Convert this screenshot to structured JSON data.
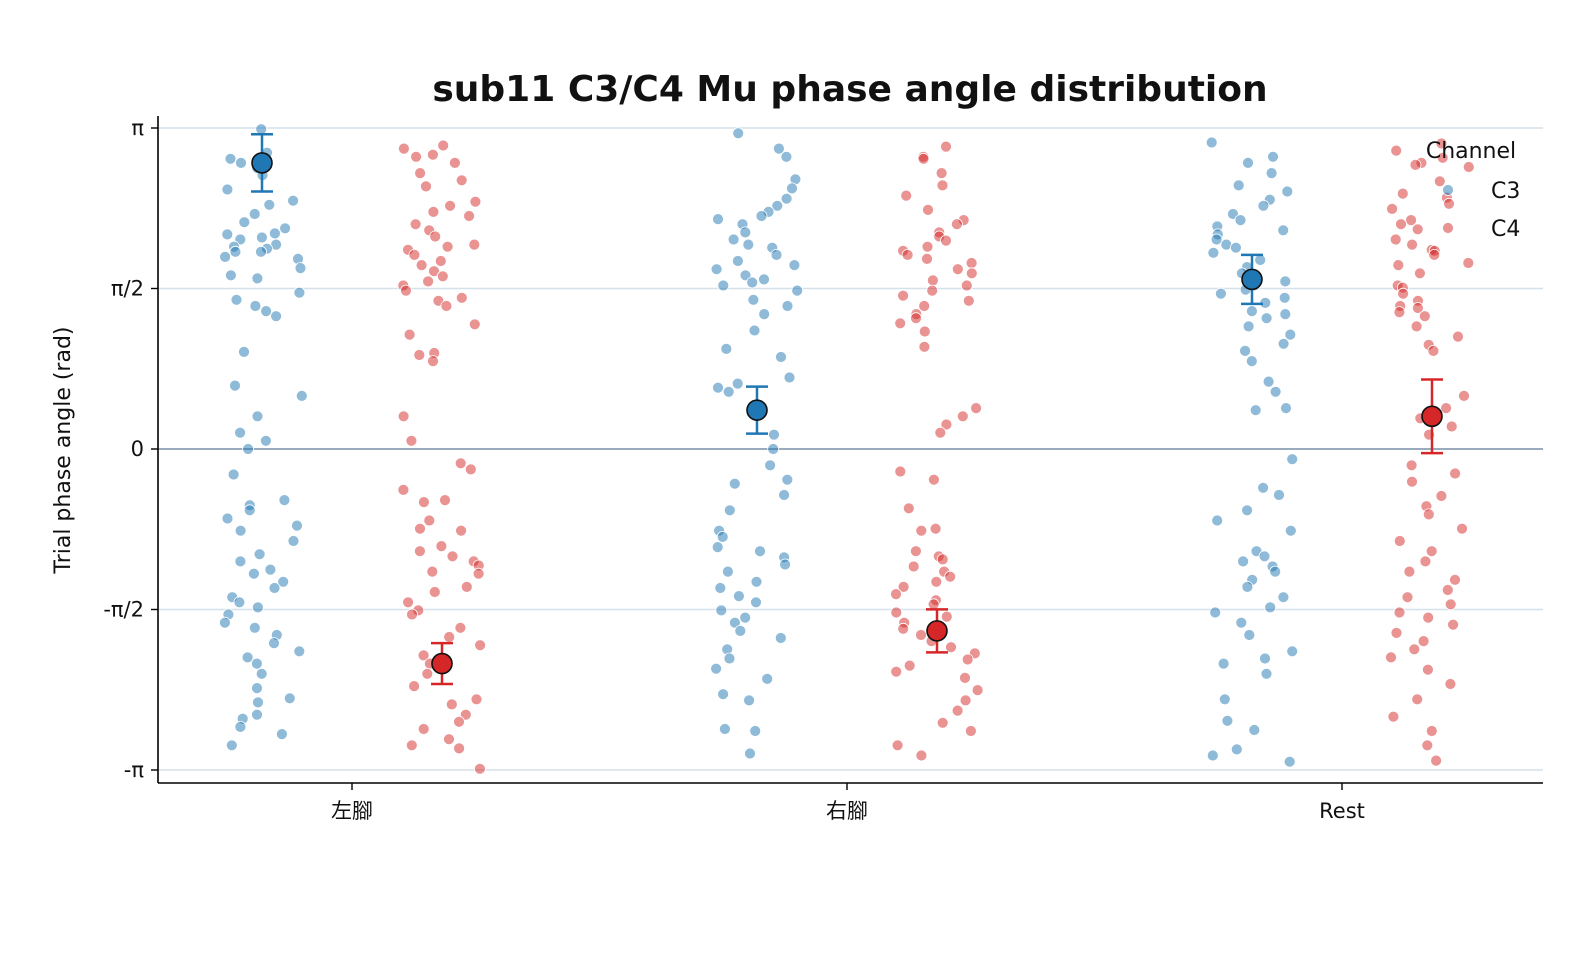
{
  "chart_data": {
    "type": "scatter",
    "title": "sub11 C3/C4 Mu phase angle distribution",
    "xlabel": "",
    "ylabel": "Trial phase angle (rad)",
    "categories": [
      "左腳",
      "右腳",
      "Rest"
    ],
    "ylim": [
      -3.3,
      3.3
    ],
    "yticks": [
      {
        "value": 3.14159,
        "label": "π"
      },
      {
        "value": 1.5708,
        "label": "π/2"
      },
      {
        "value": 0,
        "label": "0"
      },
      {
        "value": -1.5708,
        "label": "-π/2"
      },
      {
        "value": -3.14159,
        "label": "-π"
      }
    ],
    "grid": "horizontal at π/2 multiples",
    "legend": {
      "title": "Channel",
      "placement": "top-right",
      "entries": [
        "C3",
        "C4"
      ]
    },
    "colors": {
      "C3": "#1f77b4",
      "C4": "#d62728"
    },
    "series": [
      {
        "name": "C3",
        "trials": [
          [
            3.13,
            2.9,
            2.84,
            2.8,
            2.75,
            2.68,
            2.54,
            2.43,
            2.39,
            2.3,
            2.22,
            2.16,
            2.11,
            2.1,
            2.07,
            2.05,
            2.0,
            1.98,
            1.96,
            1.93,
            1.93,
            1.88,
            1.86,
            1.77,
            1.7,
            1.67,
            1.53,
            1.46,
            1.4,
            1.35,
            1.3,
            0.95,
            0.62,
            0.52,
            0.32,
            0.16,
            0.08,
            0.0,
            -0.25,
            -0.5,
            -0.55,
            -0.6,
            -0.68,
            -0.75,
            -0.8,
            -0.9,
            -1.03,
            -1.1,
            -1.18,
            -1.22,
            -1.3,
            -1.36,
            -1.45,
            -1.5,
            -1.55,
            -1.62,
            -1.7,
            -1.75,
            -1.82,
            -1.9,
            -1.98,
            -2.04,
            -2.1,
            -2.2,
            -2.34,
            -2.44,
            -2.48,
            -2.6,
            -2.64,
            -2.72,
            -2.79,
            -2.9
          ],
          [
            3.09,
            2.94,
            2.86,
            2.64,
            2.55,
            2.45,
            2.38,
            2.32,
            2.28,
            2.25,
            2.2,
            2.12,
            2.05,
            2.0,
            1.97,
            1.9,
            1.84,
            1.8,
            1.76,
            1.7,
            1.66,
            1.63,
            1.6,
            1.55,
            1.46,
            1.4,
            1.32,
            1.16,
            0.98,
            0.9,
            0.7,
            0.64,
            0.6,
            0.56,
            0.14,
            0.0,
            -0.16,
            -0.3,
            -0.34,
            -0.45,
            -0.6,
            -0.8,
            -0.86,
            -0.96,
            -1.0,
            -1.06,
            -1.13,
            -1.2,
            -1.3,
            -1.36,
            -1.44,
            -1.5,
            -1.58,
            -1.65,
            -1.7,
            -1.78,
            -1.85,
            -1.96,
            -2.05,
            -2.15,
            -2.25,
            -2.4,
            -2.46,
            -2.74,
            -2.76,
            -2.98
          ],
          [
            3.0,
            2.86,
            2.8,
            2.7,
            2.58,
            2.52,
            2.44,
            2.38,
            2.3,
            2.24,
            2.18,
            2.14,
            2.1,
            2.05,
            2.0,
            1.97,
            1.92,
            1.85,
            1.78,
            1.72,
            1.68,
            1.64,
            1.6,
            1.56,
            1.52,
            1.48,
            1.43,
            1.35,
            1.32,
            1.28,
            1.2,
            1.12,
            1.03,
            0.96,
            0.86,
            0.66,
            0.56,
            0.4,
            0.38,
            -0.1,
            -0.38,
            -0.45,
            -0.6,
            -0.7,
            -0.8,
            -1.0,
            -1.05,
            -1.1,
            -1.15,
            -1.2,
            -1.28,
            -1.35,
            -1.45,
            -1.55,
            -1.6,
            -1.7,
            -1.82,
            -1.98,
            -2.05,
            -2.1,
            -2.2,
            -2.45,
            -2.66,
            -2.75,
            -2.94,
            -3.0,
            -3.06
          ]
        ],
        "means": [
          2.8,
          0.38,
          1.66
        ],
        "errors": [
          0.28,
          0.23,
          0.24
        ]
      },
      {
        "name": "C4",
        "trials": [
          [
            2.97,
            2.94,
            2.88,
            2.86,
            2.8,
            2.7,
            2.63,
            2.57,
            2.42,
            2.38,
            2.32,
            2.28,
            2.2,
            2.14,
            2.08,
            2.0,
            1.98,
            1.95,
            1.9,
            1.84,
            1.8,
            1.74,
            1.69,
            1.64,
            1.6,
            1.55,
            1.48,
            1.45,
            1.4,
            1.22,
            1.12,
            0.94,
            0.92,
            0.86,
            0.32,
            0.08,
            -0.14,
            -0.2,
            -0.4,
            -0.5,
            -0.52,
            -0.7,
            -0.78,
            -0.8,
            -0.95,
            -1.0,
            -1.05,
            -1.1,
            -1.14,
            -1.2,
            -1.22,
            -1.35,
            -1.4,
            -1.5,
            -1.58,
            -1.62,
            -1.75,
            -1.84,
            -1.92,
            -2.02,
            -2.1,
            -2.2,
            -2.32,
            -2.45,
            -2.5,
            -2.6,
            -2.67,
            -2.74,
            -2.84,
            -2.9,
            -2.93,
            -3.13
          ],
          [
            2.96,
            2.86,
            2.84,
            2.7,
            2.58,
            2.48,
            2.34,
            2.24,
            2.2,
            2.12,
            2.08,
            2.04,
            1.98,
            1.94,
            1.9,
            1.86,
            1.82,
            1.76,
            1.72,
            1.65,
            1.6,
            1.55,
            1.5,
            1.45,
            1.4,
            1.32,
            1.28,
            1.23,
            1.15,
            1.0,
            0.4,
            0.32,
            0.24,
            0.16,
            -0.22,
            -0.3,
            -0.58,
            -0.78,
            -0.8,
            -1.0,
            -1.05,
            -1.08,
            -1.15,
            -1.2,
            -1.25,
            -1.3,
            -1.35,
            -1.42,
            -1.48,
            -1.52,
            -1.6,
            -1.64,
            -1.7,
            -1.76,
            -1.82,
            -1.88,
            -1.94,
            -2.0,
            -2.06,
            -2.12,
            -2.18,
            -2.24,
            -2.36,
            -2.46,
            -2.56,
            -2.68,
            -2.76,
            -2.9,
            -3.0
          ],
          [
            2.99,
            2.92,
            2.85,
            2.8,
            2.78,
            2.76,
            2.62,
            2.5,
            2.46,
            2.4,
            2.35,
            2.24,
            2.2,
            2.15,
            2.05,
            2.0,
            1.95,
            1.94,
            1.9,
            1.82,
            1.8,
            1.72,
            1.6,
            1.58,
            1.52,
            1.45,
            1.4,
            1.38,
            1.34,
            1.3,
            1.2,
            1.1,
            1.02,
            0.96,
            0.52,
            0.4,
            0.3,
            0.22,
            0.14,
            -0.16,
            -0.24,
            -0.32,
            -0.46,
            -0.56,
            -0.64,
            -0.78,
            -0.9,
            -1.0,
            -1.1,
            -1.2,
            -1.28,
            -1.38,
            -1.45,
            -1.52,
            -1.6,
            -1.65,
            -1.72,
            -1.8,
            -1.88,
            -1.96,
            -2.04,
            -2.16,
            -2.3,
            -2.45,
            -2.62,
            -2.76,
            -2.9,
            -3.05
          ]
        ],
        "means": [
          -2.1,
          -1.78,
          0.32
        ],
        "errors": [
          0.2,
          0.21,
          0.36
        ]
      }
    ]
  }
}
